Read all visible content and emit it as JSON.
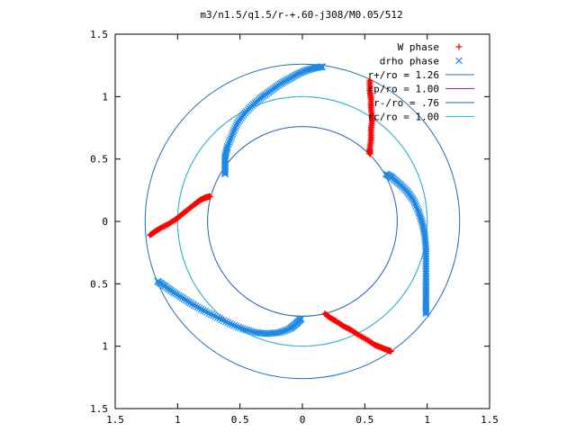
{
  "chart_data": {
    "type": "scatter",
    "title": "m3/n1.5/q1.5/r-+.60-j308/M0.05/512",
    "xlabel": "",
    "ylabel": "",
    "xlim": [
      -1.5,
      1.5
    ],
    "ylim": [
      -1.5,
      1.5
    ],
    "x_ticks": [
      -1.5,
      -1,
      -0.5,
      0,
      0.5,
      1,
      1.5
    ],
    "y_ticks": [
      -1.5,
      -1,
      -0.5,
      0,
      0.5,
      1,
      1.5
    ],
    "x_tick_labels": [
      "1.5",
      "1",
      "0.5",
      "0",
      "0.5",
      "1",
      "1.5"
    ],
    "y_tick_labels": [
      "1.5",
      "1",
      "0.5",
      "0",
      "0.5",
      "1",
      "1.5"
    ],
    "grid": false,
    "legend_position": "top-right",
    "circles": [
      {
        "label": "r+/ro = 1.26",
        "r": 1.26,
        "color": "#1f6fb5"
      },
      {
        "label": "rp/ro = 1.00",
        "r": 1.0,
        "color": "#9b2a7f"
      },
      {
        "label": "r-/ro = .76",
        "r": 0.76,
        "color": "#2a5fb0"
      },
      {
        "label": "rc/ro = 1.00",
        "r": 1.0,
        "color": "#22c8d8"
      }
    ],
    "series": [
      {
        "name": "W phase",
        "marker": "+",
        "color": "#ff0000",
        "branches": [
          [
            [
              0.54,
              1.13
            ],
            [
              0.54,
              1.05
            ],
            [
              0.55,
              0.98
            ],
            [
              0.55,
              0.9
            ],
            [
              0.56,
              0.82
            ],
            [
              0.55,
              0.74
            ],
            [
              0.55,
              0.66
            ],
            [
              0.54,
              0.58
            ],
            [
              0.54,
              0.54
            ]
          ],
          [
            [
              -1.22,
              -0.11
            ],
            [
              -1.18,
              -0.08
            ],
            [
              -1.13,
              -0.05
            ],
            [
              -1.07,
              -0.02
            ],
            [
              -1.01,
              0.02
            ],
            [
              -0.96,
              0.06
            ],
            [
              -0.91,
              0.1
            ],
            [
              -0.86,
              0.14
            ],
            [
              -0.82,
              0.17
            ],
            [
              -0.78,
              0.19
            ],
            [
              -0.74,
              0.2
            ]
          ],
          [
            [
              0.18,
              -0.74
            ],
            [
              0.22,
              -0.77
            ],
            [
              0.27,
              -0.8
            ],
            [
              0.33,
              -0.84
            ],
            [
              0.39,
              -0.87
            ],
            [
              0.45,
              -0.91
            ],
            [
              0.52,
              -0.95
            ],
            [
              0.58,
              -0.99
            ],
            [
              0.63,
              -1.01
            ],
            [
              0.68,
              -1.03
            ],
            [
              0.71,
              -1.04
            ]
          ]
        ]
      },
      {
        "name": "drho phase",
        "marker": "x",
        "color": "#1e88e5",
        "branches": [
          [
            [
              0.16,
              1.24
            ],
            [
              0.1,
              1.23
            ],
            [
              0.03,
              1.21
            ],
            [
              -0.04,
              1.18
            ],
            [
              -0.11,
              1.14
            ],
            [
              -0.18,
              1.1
            ],
            [
              -0.25,
              1.05
            ],
            [
              -0.32,
              1.0
            ],
            [
              -0.39,
              0.94
            ],
            [
              -0.46,
              0.87
            ],
            [
              -0.52,
              0.79
            ],
            [
              -0.56,
              0.7
            ],
            [
              -0.6,
              0.6
            ],
            [
              -0.62,
              0.52
            ],
            [
              -0.62,
              0.45
            ],
            [
              -0.62,
              0.38
            ]
          ],
          [
            [
              0.67,
              0.38
            ],
            [
              0.72,
              0.35
            ],
            [
              0.78,
              0.3
            ],
            [
              0.84,
              0.24
            ],
            [
              0.89,
              0.17
            ],
            [
              0.93,
              0.08
            ],
            [
              0.96,
              -0.01
            ],
            [
              0.98,
              -0.11
            ],
            [
              0.99,
              -0.22
            ],
            [
              0.99,
              -0.34
            ],
            [
              0.99,
              -0.46
            ],
            [
              0.99,
              -0.57
            ],
            [
              0.99,
              -0.66
            ],
            [
              0.99,
              -0.74
            ]
          ],
          [
            [
              -1.16,
              -0.48
            ],
            [
              -1.1,
              -0.52
            ],
            [
              -1.03,
              -0.57
            ],
            [
              -0.95,
              -0.62
            ],
            [
              -0.87,
              -0.67
            ],
            [
              -0.78,
              -0.72
            ],
            [
              -0.68,
              -0.77
            ],
            [
              -0.58,
              -0.82
            ],
            [
              -0.48,
              -0.86
            ],
            [
              -0.38,
              -0.89
            ],
            [
              -0.28,
              -0.9
            ],
            [
              -0.18,
              -0.89
            ],
            [
              -0.1,
              -0.86
            ],
            [
              -0.05,
              -0.82
            ],
            [
              -0.01,
              -0.78
            ]
          ]
        ]
      }
    ]
  }
}
